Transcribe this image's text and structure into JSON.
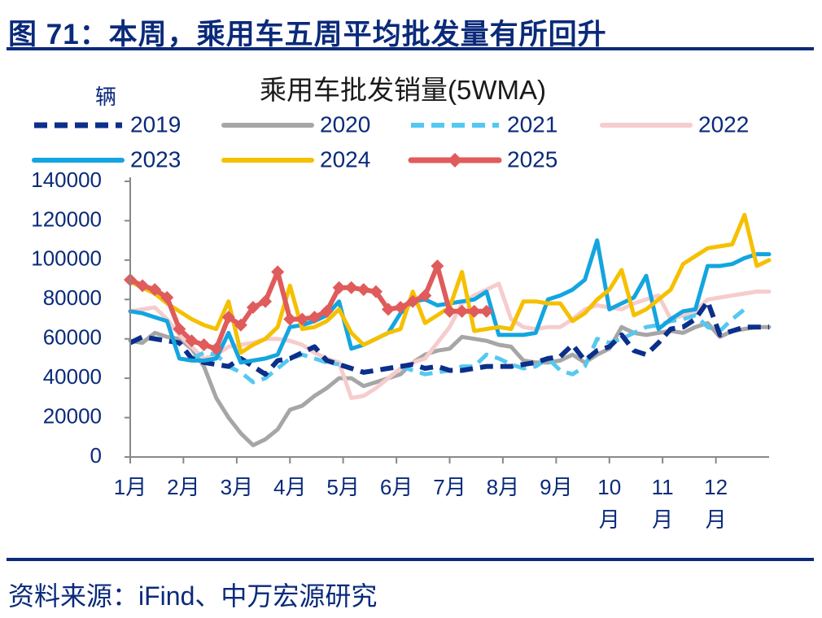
{
  "figure_title": "图 71：本周，乘用车五周平均批发量有所回升",
  "source": "资料来源：iFind、中万宏源研究",
  "chart_data": {
    "type": "line",
    "title": "乘用车批发销量(5WMA)",
    "ylabel": "辆",
    "xlabel": "",
    "ylim": [
      0,
      140000
    ],
    "yticks": [
      "0",
      "20000",
      "40000",
      "60000",
      "80000",
      "100000",
      "120000",
      "140000"
    ],
    "xlim": [
      0,
      52
    ],
    "month_labels": [
      {
        "x": 0,
        "lines": [
          "1月"
        ]
      },
      {
        "x": 4.33,
        "lines": [
          "2月"
        ]
      },
      {
        "x": 8.67,
        "lines": [
          "3月"
        ]
      },
      {
        "x": 13,
        "lines": [
          "4月"
        ]
      },
      {
        "x": 17.33,
        "lines": [
          "5月"
        ]
      },
      {
        "x": 21.67,
        "lines": [
          "6月"
        ]
      },
      {
        "x": 26,
        "lines": [
          "7月"
        ]
      },
      {
        "x": 30.33,
        "lines": [
          "8月"
        ]
      },
      {
        "x": 34.67,
        "lines": [
          "9月"
        ]
      },
      {
        "x": 39,
        "lines": [
          "10",
          "月"
        ]
      },
      {
        "x": 43.33,
        "lines": [
          "11",
          "月"
        ]
      },
      {
        "x": 47.67,
        "lines": [
          "12",
          "月"
        ]
      }
    ],
    "legend_position": "top",
    "grid": false,
    "series": [
      {
        "name": "2019",
        "color": "#0b2f8a",
        "style": "dashed-bold",
        "values": [
          58000,
          61000,
          60000,
          59000,
          58000,
          50000,
          48000,
          47000,
          46000,
          50000,
          46000,
          42000,
          49000,
          50000,
          53000,
          56000,
          49000,
          47000,
          45000,
          43000,
          44000,
          45000,
          46000,
          47000,
          45000,
          46000,
          44000,
          44000,
          45000,
          46000,
          46000,
          46000,
          47000,
          48000,
          50000,
          51000,
          57000,
          49000,
          54000,
          56000,
          62000,
          54000,
          52000,
          58000,
          65000,
          66000,
          70000,
          79000,
          62000,
          64000,
          66000,
          66000,
          66000
        ]
      },
      {
        "name": "2020",
        "color": "#a6a6a6",
        "style": "solid",
        "values": [
          59000,
          58000,
          63000,
          61000,
          60000,
          55000,
          46000,
          30000,
          20000,
          12000,
          6000,
          9000,
          14000,
          24000,
          26000,
          31000,
          35000,
          40000,
          40000,
          36000,
          38000,
          40000,
          42000,
          48000,
          52000,
          54000,
          55000,
          61000,
          60000,
          59000,
          57000,
          56000,
          49000,
          48000,
          48000,
          49000,
          52000,
          48000,
          52000,
          55000,
          66000,
          63000,
          62000,
          63000,
          64000,
          63000,
          66000,
          68000,
          61000,
          64000,
          65000,
          66000,
          66000
        ]
      },
      {
        "name": "2021",
        "color": "#55c8f0",
        "style": "dashed",
        "values": [
          null,
          null,
          null,
          null,
          null,
          null,
          null,
          null,
          null,
          null,
          null,
          null,
          null,
          null,
          null,
          null,
          null,
          null,
          null,
          null,
          null,
          null,
          null,
          null,
          null,
          null,
          null,
          null,
          null,
          null,
          null,
          null,
          null,
          null,
          null,
          null,
          null,
          null,
          null,
          null,
          null,
          null,
          null,
          null,
          null,
          null,
          null,
          null,
          null,
          null,
          null,
          null,
          null
        ],
        "segments": [
          [
            [
              5,
              50000
            ],
            [
              6,
              53000
            ],
            [
              7,
              52000
            ],
            [
              8,
              46000
            ],
            [
              9,
              43000
            ],
            [
              10,
              38000
            ],
            [
              11,
              40000
            ],
            [
              12,
              45000
            ],
            [
              13,
              50000
            ],
            [
              14,
              52000
            ],
            [
              15,
              50000
            ],
            [
              16,
              48000
            ],
            [
              17,
              47000
            ]
          ],
          [
            [
              22,
              46000
            ],
            [
              23,
              44000
            ],
            [
              24,
              42000
            ],
            [
              25,
              43000
            ],
            [
              26,
              44000
            ],
            [
              27,
              46000
            ],
            [
              28,
              46000
            ],
            [
              29,
              52000
            ],
            [
              30,
              50000
            ],
            [
              31,
              47000
            ],
            [
              32,
              45000
            ],
            [
              33,
              46000
            ],
            [
              34,
              50000
            ],
            [
              35,
              44000
            ],
            [
              36,
              42000
            ],
            [
              37,
              46000
            ],
            [
              38,
              60000
            ],
            [
              39,
              58000
            ],
            [
              40,
              60000
            ],
            [
              41,
              63000
            ],
            [
              42,
              66000
            ],
            [
              43,
              67000
            ],
            [
              44,
              69000
            ],
            [
              45,
              70000
            ],
            [
              46,
              72000
            ],
            [
              47,
              66000
            ],
            [
              48,
              64000
            ],
            [
              49,
              70000
            ],
            [
              50,
              75000
            ]
          ]
        ]
      },
      {
        "name": "2022",
        "color": "#f6cccc",
        "style": "solid",
        "values": [
          74000,
          75000,
          76000,
          70000,
          62000,
          56000,
          50000,
          52000,
          56000,
          57000,
          58000,
          60000,
          60000,
          59000,
          57000,
          53000,
          50000,
          48000,
          30000,
          31000,
          35000,
          40000,
          45000,
          48000,
          50000,
          58000,
          66000,
          78000,
          82000,
          85000,
          88000,
          70000,
          66000,
          65000,
          66000,
          66000,
          70000,
          75000,
          77000,
          76000,
          75000,
          78000,
          80000,
          82000,
          70000,
          72000,
          74000,
          80000,
          81000,
          82000,
          83000,
          84000,
          84000
        ]
      },
      {
        "name": "2023",
        "color": "#13a5e0",
        "style": "solid",
        "values": [
          74000,
          73000,
          71000,
          69000,
          50000,
          49000,
          49000,
          50000,
          63000,
          48000,
          49000,
          50000,
          52000,
          66000,
          67000,
          69000,
          72000,
          79000,
          55000,
          57000,
          60000,
          63000,
          73000,
          79000,
          80000,
          77000,
          78000,
          79000,
          80000,
          84000,
          62000,
          62000,
          62000,
          63000,
          80000,
          82000,
          85000,
          90000,
          110000,
          75000,
          78000,
          81000,
          92000,
          65000,
          70000,
          74000,
          75000,
          97000,
          97000,
          98000,
          101000,
          103000,
          103000
        ]
      },
      {
        "name": "2024",
        "color": "#f5c000",
        "style": "solid",
        "values": [
          89000,
          86000,
          83000,
          78000,
          74000,
          70000,
          67000,
          65000,
          79000,
          53000,
          57000,
          60000,
          66000,
          87000,
          65000,
          66000,
          69000,
          75000,
          63000,
          57000,
          60000,
          63000,
          65000,
          84000,
          68000,
          72000,
          76000,
          94000,
          64000,
          65000,
          66000,
          65000,
          79000,
          79000,
          78000,
          78000,
          69000,
          73000,
          80000,
          85000,
          95000,
          72000,
          75000,
          80000,
          85000,
          98000,
          102000,
          106000,
          107000,
          108000,
          123000,
          97000,
          100000
        ]
      },
      {
        "name": "2025",
        "color": "#e05b5b",
        "style": "solid-diamond",
        "values": [
          90000,
          87000,
          85000,
          81000,
          65000,
          59000,
          57000,
          55000,
          71000,
          67000,
          76000,
          79000,
          94000,
          70000,
          70000,
          71000,
          74000,
          86000,
          86000,
          85000,
          84000,
          75000,
          76000,
          79000,
          82000,
          97000,
          74000,
          74000,
          74000,
          74000,
          null,
          null,
          null,
          null,
          null,
          null,
          null,
          null,
          null,
          null,
          null,
          null,
          null,
          null,
          null,
          null,
          null,
          null,
          null,
          null,
          null,
          null,
          null
        ]
      }
    ]
  }
}
